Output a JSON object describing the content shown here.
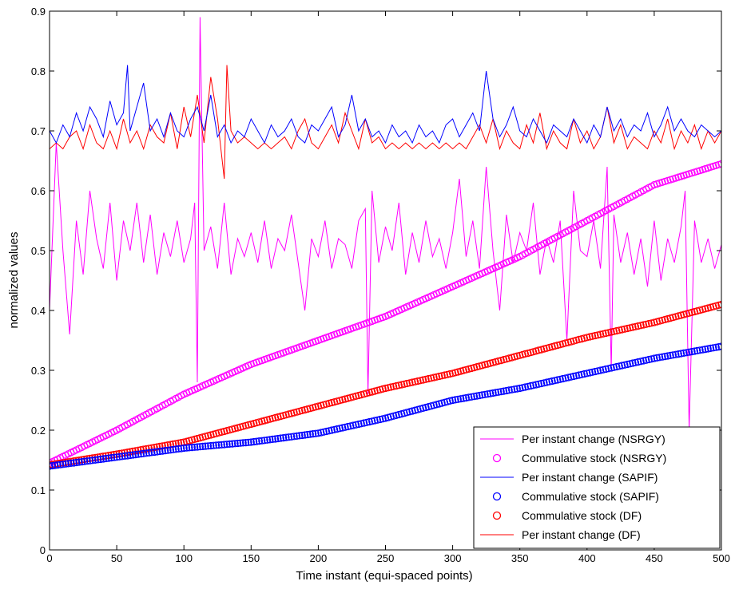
{
  "chart_data": {
    "type": "line",
    "xlabel": "Time instant (equi-spaced points)",
    "ylabel": "normalized values",
    "xlim": [
      0,
      500
    ],
    "ylim": [
      0,
      0.9
    ],
    "xticks": [
      "0",
      "50",
      "100",
      "150",
      "200",
      "250",
      "300",
      "350",
      "400",
      "450",
      "500"
    ],
    "yticks": [
      "0",
      "0.1",
      "0.2",
      "0.3",
      "0.4",
      "0.5",
      "0.6",
      "0.7",
      "0.8",
      "0.9"
    ],
    "grid": false,
    "legend_position": "bottom-right",
    "series": [
      {
        "name": "Per instant change (NSRGY)",
        "kind": "line",
        "color": "#ff00ff",
        "x": [
          0,
          5,
          10,
          15,
          20,
          25,
          30,
          35,
          40,
          45,
          50,
          55,
          60,
          65,
          70,
          75,
          80,
          85,
          90,
          95,
          100,
          105,
          108,
          110,
          112,
          115,
          120,
          125,
          130,
          135,
          140,
          145,
          150,
          155,
          160,
          165,
          170,
          175,
          180,
          185,
          190,
          195,
          200,
          205,
          210,
          215,
          220,
          225,
          230,
          235,
          237,
          240,
          245,
          250,
          255,
          260,
          265,
          270,
          275,
          280,
          285,
          290,
          295,
          300,
          305,
          310,
          315,
          320,
          325,
          330,
          335,
          340,
          345,
          350,
          355,
          360,
          365,
          370,
          375,
          380,
          385,
          390,
          395,
          400,
          405,
          410,
          415,
          418,
          420,
          425,
          430,
          435,
          440,
          445,
          450,
          455,
          460,
          465,
          470,
          473,
          476,
          480,
          485,
          490,
          495,
          500
        ],
        "y": [
          0.4,
          0.68,
          0.5,
          0.36,
          0.55,
          0.46,
          0.6,
          0.52,
          0.47,
          0.58,
          0.45,
          0.55,
          0.5,
          0.58,
          0.48,
          0.56,
          0.46,
          0.53,
          0.49,
          0.55,
          0.48,
          0.52,
          0.58,
          0.28,
          0.89,
          0.5,
          0.54,
          0.47,
          0.58,
          0.46,
          0.52,
          0.49,
          0.53,
          0.48,
          0.55,
          0.47,
          0.52,
          0.5,
          0.56,
          0.48,
          0.4,
          0.52,
          0.49,
          0.55,
          0.47,
          0.52,
          0.51,
          0.47,
          0.55,
          0.57,
          0.26,
          0.6,
          0.48,
          0.54,
          0.5,
          0.58,
          0.46,
          0.53,
          0.48,
          0.55,
          0.49,
          0.52,
          0.47,
          0.53,
          0.62,
          0.49,
          0.55,
          0.47,
          0.64,
          0.5,
          0.4,
          0.56,
          0.48,
          0.53,
          0.5,
          0.58,
          0.46,
          0.52,
          0.48,
          0.55,
          0.35,
          0.6,
          0.5,
          0.49,
          0.55,
          0.47,
          0.64,
          0.3,
          0.56,
          0.48,
          0.53,
          0.46,
          0.52,
          0.44,
          0.55,
          0.45,
          0.52,
          0.48,
          0.54,
          0.6,
          0.2,
          0.55,
          0.48,
          0.52,
          0.47,
          0.51
        ],
        "note": ""
      },
      {
        "name": "Commulative stock (NSRGY)",
        "kind": "markers",
        "color": "#ff00ff",
        "x": [
          0,
          50,
          100,
          150,
          200,
          250,
          300,
          350,
          400,
          450,
          500
        ],
        "y": [
          0.145,
          0.2,
          0.26,
          0.31,
          0.35,
          0.39,
          0.44,
          0.49,
          0.55,
          0.61,
          0.645
        ]
      },
      {
        "name": "Per instant change (SAPIF)",
        "kind": "line",
        "color": "#0000ff",
        "x": [
          0,
          5,
          10,
          15,
          20,
          25,
          30,
          35,
          40,
          45,
          50,
          55,
          58,
          60,
          65,
          70,
          75,
          80,
          85,
          90,
          95,
          100,
          105,
          110,
          115,
          120,
          125,
          130,
          135,
          140,
          145,
          150,
          155,
          160,
          165,
          170,
          175,
          180,
          185,
          190,
          195,
          200,
          205,
          210,
          215,
          220,
          225,
          230,
          235,
          240,
          245,
          250,
          255,
          260,
          265,
          270,
          275,
          280,
          285,
          290,
          295,
          300,
          305,
          310,
          315,
          320,
          325,
          330,
          335,
          340,
          345,
          350,
          355,
          360,
          365,
          370,
          375,
          380,
          385,
          390,
          395,
          400,
          405,
          410,
          415,
          420,
          425,
          430,
          435,
          440,
          445,
          450,
          455,
          460,
          465,
          470,
          475,
          480,
          485,
          490,
          495,
          500
        ],
        "y": [
          0.7,
          0.68,
          0.71,
          0.69,
          0.73,
          0.7,
          0.74,
          0.72,
          0.69,
          0.75,
          0.71,
          0.73,
          0.81,
          0.7,
          0.74,
          0.78,
          0.7,
          0.72,
          0.69,
          0.73,
          0.7,
          0.69,
          0.72,
          0.74,
          0.7,
          0.76,
          0.69,
          0.71,
          0.68,
          0.7,
          0.69,
          0.72,
          0.7,
          0.68,
          0.71,
          0.69,
          0.7,
          0.72,
          0.69,
          0.68,
          0.71,
          0.7,
          0.72,
          0.74,
          0.69,
          0.71,
          0.76,
          0.7,
          0.72,
          0.69,
          0.7,
          0.68,
          0.71,
          0.69,
          0.7,
          0.68,
          0.71,
          0.69,
          0.7,
          0.68,
          0.71,
          0.72,
          0.69,
          0.71,
          0.73,
          0.7,
          0.8,
          0.72,
          0.69,
          0.71,
          0.74,
          0.7,
          0.69,
          0.72,
          0.7,
          0.68,
          0.71,
          0.7,
          0.69,
          0.72,
          0.7,
          0.68,
          0.71,
          0.69,
          0.74,
          0.7,
          0.72,
          0.69,
          0.71,
          0.7,
          0.73,
          0.69,
          0.71,
          0.74,
          0.7,
          0.72,
          0.7,
          0.69,
          0.71,
          0.7,
          0.69,
          0.7
        ]
      },
      {
        "name": "Commulative stock (SAPIF)",
        "kind": "markers",
        "color": "#0000ff",
        "x": [
          0,
          50,
          100,
          150,
          200,
          250,
          300,
          350,
          400,
          450,
          500
        ],
        "y": [
          0.14,
          0.155,
          0.17,
          0.18,
          0.195,
          0.22,
          0.25,
          0.27,
          0.295,
          0.32,
          0.34
        ]
      },
      {
        "name": "Commulative stock (DF)",
        "kind": "markers",
        "color": "#ff0000",
        "x": [
          0,
          50,
          100,
          150,
          200,
          250,
          300,
          350,
          400,
          450,
          500
        ],
        "y": [
          0.142,
          0.16,
          0.18,
          0.21,
          0.24,
          0.27,
          0.295,
          0.325,
          0.355,
          0.38,
          0.41
        ]
      },
      {
        "name": "Per instant change (DF)",
        "kind": "line",
        "color": "#ff0000",
        "x": [
          0,
          5,
          10,
          15,
          20,
          25,
          30,
          35,
          40,
          45,
          50,
          55,
          60,
          65,
          70,
          75,
          80,
          85,
          90,
          95,
          100,
          105,
          110,
          115,
          120,
          125,
          130,
          132,
          135,
          140,
          145,
          150,
          155,
          160,
          165,
          170,
          175,
          180,
          185,
          190,
          195,
          200,
          205,
          210,
          215,
          220,
          225,
          230,
          235,
          240,
          245,
          250,
          255,
          260,
          265,
          270,
          275,
          280,
          285,
          290,
          295,
          300,
          305,
          310,
          315,
          320,
          325,
          330,
          335,
          340,
          345,
          350,
          355,
          360,
          365,
          370,
          375,
          380,
          385,
          390,
          395,
          400,
          405,
          410,
          415,
          420,
          425,
          430,
          435,
          440,
          445,
          450,
          455,
          460,
          465,
          470,
          475,
          480,
          485,
          490,
          495,
          500
        ],
        "y": [
          0.67,
          0.68,
          0.67,
          0.69,
          0.7,
          0.67,
          0.71,
          0.68,
          0.67,
          0.7,
          0.67,
          0.72,
          0.68,
          0.7,
          0.67,
          0.71,
          0.69,
          0.68,
          0.73,
          0.67,
          0.74,
          0.69,
          0.76,
          0.68,
          0.79,
          0.72,
          0.62,
          0.81,
          0.7,
          0.68,
          0.69,
          0.68,
          0.67,
          0.68,
          0.67,
          0.68,
          0.69,
          0.67,
          0.7,
          0.72,
          0.68,
          0.67,
          0.69,
          0.71,
          0.68,
          0.73,
          0.7,
          0.67,
          0.72,
          0.68,
          0.69,
          0.67,
          0.68,
          0.67,
          0.68,
          0.67,
          0.68,
          0.67,
          0.68,
          0.67,
          0.68,
          0.67,
          0.68,
          0.67,
          0.69,
          0.71,
          0.68,
          0.72,
          0.67,
          0.7,
          0.68,
          0.67,
          0.71,
          0.68,
          0.73,
          0.67,
          0.7,
          0.68,
          0.67,
          0.72,
          0.68,
          0.7,
          0.67,
          0.69,
          0.74,
          0.68,
          0.71,
          0.67,
          0.69,
          0.68,
          0.67,
          0.7,
          0.68,
          0.72,
          0.67,
          0.7,
          0.68,
          0.71,
          0.67,
          0.7,
          0.68,
          0.7
        ]
      }
    ]
  }
}
